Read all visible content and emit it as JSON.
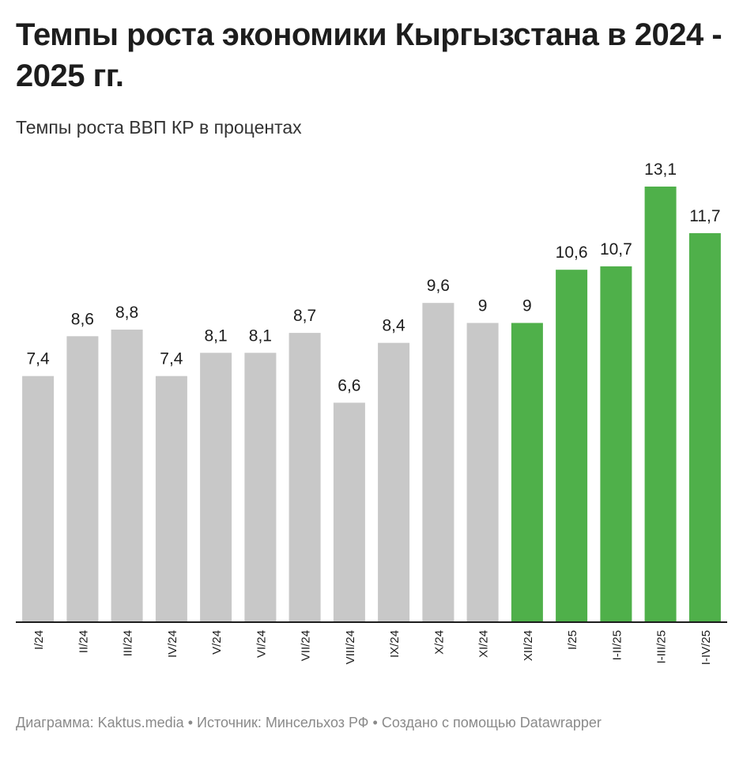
{
  "title": "Темпы роста экономики Кыргызстана в 2024 - 2025 гг.",
  "subtitle": "Темпы роста ВВП КР в процентах",
  "footer": {
    "chart_by": "Диаграмма: Kaktus.media",
    "source": "Источник: Минсельхоз РФ",
    "created_with": "Создано с помощью Datawrapper",
    "separator": "•"
  },
  "colors": {
    "gray_bar": "#c8c8c8",
    "green_bar": "#4fb04a",
    "axis": "#1d1d1d"
  },
  "chart_data": {
    "type": "bar",
    "categories": [
      "I/24",
      "II/24",
      "III/24",
      "IV/24",
      "V/24",
      "VI/24",
      "VII/24",
      "VIII/24",
      "IX/24",
      "X/24",
      "XI/24",
      "XII/24",
      "I/25",
      "I-II/25",
      "I-III/25",
      "I-IV/25"
    ],
    "values": [
      7.4,
      8.6,
      8.8,
      7.4,
      8.1,
      8.1,
      8.7,
      6.6,
      8.4,
      9.6,
      9,
      9,
      10.6,
      10.7,
      13.1,
      11.7
    ],
    "value_labels": [
      "7,4",
      "8,6",
      "8,8",
      "7,4",
      "8,1",
      "8,1",
      "8,7",
      "6,6",
      "8,4",
      "9,6",
      "9",
      "9",
      "10,6",
      "10,7",
      "13,1",
      "11,7"
    ],
    "highlight_from_index": 11,
    "ylim": [
      0,
      13.1
    ],
    "xlabel": "",
    "ylabel": "",
    "grid": false,
    "legend": "none"
  }
}
